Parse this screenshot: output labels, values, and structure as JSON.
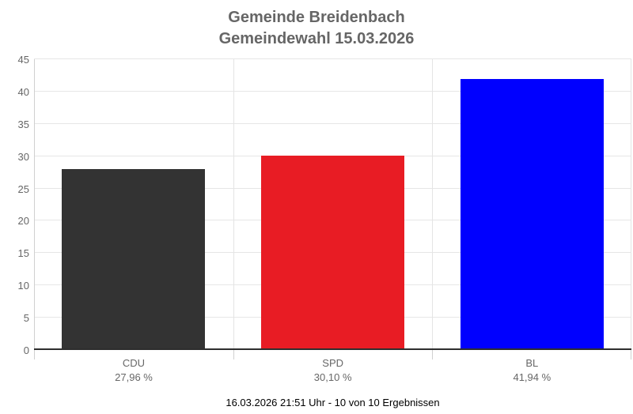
{
  "title": {
    "line1": "Gemeinde Breidenbach",
    "line2": "Gemeindewahl 15.03.2026"
  },
  "footer": "16.03.2026 21:51 Uhr - 10 von 10 Ergebnissen",
  "chart_data": {
    "type": "bar",
    "title": "Gemeinde Breidenbach Gemeindewahl 15.03.2026",
    "categories": [
      "CDU",
      "SPD",
      "BL"
    ],
    "values": [
      27.96,
      30.1,
      41.94
    ],
    "value_labels": [
      "27,96 %",
      "30,10 %",
      "41,94 %"
    ],
    "bar_colors": [
      "#333333",
      "#e81c24",
      "#0000ff"
    ],
    "xlabel": "",
    "ylabel": "",
    "ylim": [
      0,
      45
    ],
    "yticks": [
      0,
      5,
      10,
      15,
      20,
      25,
      30,
      35,
      40,
      45
    ],
    "grid": true,
    "legend": false,
    "subtitle_footer": "16.03.2026 21:51 Uhr - 10 von 10 Ergebnissen"
  },
  "colors": {
    "hgrid": "#e6e6e6",
    "vgrid": "#e4e4e4",
    "axis_line": "#d0d0d0",
    "baseline": "#2e2e2e",
    "axis_text": "#666666",
    "title_text": "#666666",
    "footer_text": "#000000"
  }
}
